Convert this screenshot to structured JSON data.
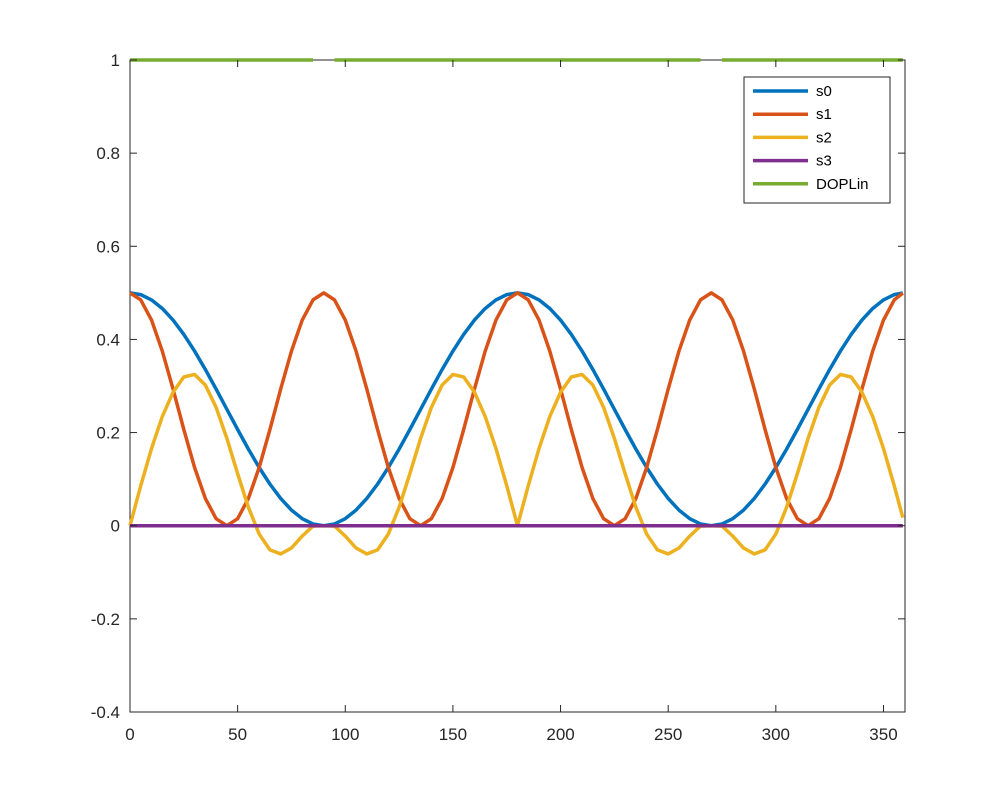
{
  "chart_data": {
    "type": "line",
    "title": "",
    "xlabel": "",
    "ylabel": "",
    "xlim": [
      0,
      360
    ],
    "ylim": [
      -0.4,
      1
    ],
    "x_ticks": [
      0,
      50,
      100,
      150,
      200,
      250,
      300,
      350
    ],
    "x_tick_labels": [
      "0",
      "50",
      "100",
      "150",
      "200",
      "250",
      "300",
      "350"
    ],
    "y_ticks": [
      -0.4,
      -0.2,
      0,
      0.2,
      0.4,
      0.6,
      0.8,
      1
    ],
    "y_tick_labels": [
      "-0.4",
      "-0.2",
      "0",
      "0.2",
      "0.4",
      "0.6",
      "0.8",
      "1"
    ],
    "grid": false,
    "legend_position": "top-right",
    "x": [
      0,
      5,
      10,
      15,
      20,
      25,
      30,
      35,
      40,
      45,
      50,
      55,
      60,
      65,
      70,
      75,
      80,
      85,
      90,
      95,
      100,
      105,
      110,
      115,
      120,
      125,
      130,
      135,
      140,
      145,
      150,
      155,
      160,
      165,
      170,
      175,
      180,
      185,
      190,
      195,
      200,
      205,
      210,
      215,
      220,
      225,
      230,
      235,
      240,
      245,
      250,
      255,
      260,
      265,
      270,
      275,
      280,
      285,
      290,
      295,
      300,
      305,
      310,
      315,
      320,
      325,
      330,
      335,
      340,
      345,
      350,
      355,
      359
    ],
    "series": [
      {
        "name": "s0",
        "color": "#0072BD",
        "values": [
          0.5,
          0.4962,
          0.4849,
          0.4665,
          0.4415,
          0.4107,
          0.375,
          0.3355,
          0.2934,
          0.25,
          0.2066,
          0.1645,
          0.125,
          0.0893,
          0.0585,
          0.0335,
          0.0151,
          0.0038,
          0,
          0.0038,
          0.0151,
          0.0335,
          0.0585,
          0.0893,
          0.125,
          0.1645,
          0.2066,
          0.25,
          0.2934,
          0.3355,
          0.375,
          0.4107,
          0.4415,
          0.4665,
          0.4849,
          0.4962,
          0.5,
          0.4962,
          0.4849,
          0.4665,
          0.4415,
          0.4107,
          0.375,
          0.3355,
          0.2934,
          0.25,
          0.2066,
          0.1645,
          0.125,
          0.0893,
          0.0585,
          0.0335,
          0.0151,
          0.0038,
          0,
          0.0038,
          0.0151,
          0.0335,
          0.0585,
          0.0893,
          0.125,
          0.1645,
          0.2066,
          0.25,
          0.2934,
          0.3355,
          0.375,
          0.4107,
          0.4415,
          0.4665,
          0.4849,
          0.4962,
          0.4998
        ]
      },
      {
        "name": "s1",
        "color": "#D95319",
        "values": [
          0.5,
          0.4849,
          0.4415,
          0.375,
          0.2934,
          0.2066,
          0.125,
          0.0585,
          0.0151,
          0,
          0.0151,
          0.0585,
          0.125,
          0.2066,
          0.2934,
          0.375,
          0.4415,
          0.4849,
          0.5,
          0.4849,
          0.4415,
          0.375,
          0.2934,
          0.2066,
          0.125,
          0.0585,
          0.0151,
          0,
          0.0151,
          0.0585,
          0.125,
          0.2066,
          0.2934,
          0.375,
          0.4415,
          0.4849,
          0.5,
          0.4849,
          0.4415,
          0.375,
          0.2934,
          0.2066,
          0.125,
          0.0585,
          0.0151,
          0,
          0.0151,
          0.0585,
          0.125,
          0.2066,
          0.2934,
          0.375,
          0.4415,
          0.4849,
          0.5,
          0.4849,
          0.4415,
          0.375,
          0.2934,
          0.2066,
          0.125,
          0.0585,
          0.0151,
          0,
          0.0151,
          0.0585,
          0.125,
          0.2066,
          0.2934,
          0.375,
          0.4415,
          0.4849,
          0.4994
        ]
      },
      {
        "name": "s2",
        "color": "#EDB120",
        "values": [
          0,
          0.0859,
          0.1658,
          0.2343,
          0.2868,
          0.3193,
          0.3248,
          0.3021,
          0.2542,
          0.1875,
          0.1117,
          0.0395,
          -0.0179,
          -0.0519,
          -0.0606,
          -0.0479,
          -0.0223,
          -0.0008,
          0,
          -0.0008,
          -0.0223,
          -0.0479,
          -0.0606,
          -0.0519,
          -0.0179,
          0.0395,
          0.1117,
          0.1875,
          0.2542,
          0.3021,
          0.3248,
          0.3193,
          0.2868,
          0.2343,
          0.1658,
          0.0859,
          0,
          0.0859,
          0.1658,
          0.2343,
          0.2868,
          0.3193,
          0.3248,
          0.3021,
          0.2542,
          0.1875,
          0.1117,
          0.0395,
          -0.0179,
          -0.0519,
          -0.0606,
          -0.0479,
          -0.0223,
          -0.0008,
          0,
          -0.0008,
          -0.0223,
          -0.0479,
          -0.0606,
          -0.0519,
          -0.0179,
          0.0395,
          0.1117,
          0.1875,
          0.2542,
          0.3021,
          0.3248,
          0.3193,
          0.2868,
          0.2343,
          0.1658,
          0.0859,
          0.0174
        ]
      },
      {
        "name": "s3",
        "color": "#7E2F8E",
        "values": [
          0,
          0,
          0,
          0,
          0,
          0,
          0,
          0,
          0,
          0,
          0,
          0,
          0,
          0,
          0,
          0,
          0,
          0,
          0,
          0,
          0,
          0,
          0,
          0,
          0,
          0,
          0,
          0,
          0,
          0,
          0,
          0,
          0,
          0,
          0,
          0,
          0,
          0,
          0,
          0,
          0,
          0,
          0,
          0,
          0,
          0,
          0,
          0,
          0,
          0,
          0,
          0,
          0,
          0,
          0,
          0,
          0,
          0,
          0,
          0,
          0,
          0,
          0,
          0,
          0,
          0,
          0,
          0,
          0,
          0,
          0,
          0,
          0
        ]
      },
      {
        "name": "DOPLin",
        "color": "#77AC30",
        "values": [
          1,
          1,
          1,
          1,
          1,
          1,
          1,
          1,
          1,
          1,
          1,
          1,
          1,
          1,
          1,
          1,
          1,
          1,
          null,
          1,
          1,
          1,
          1,
          1,
          1,
          1,
          1,
          1,
          1,
          1,
          1,
          1,
          1,
          1,
          1,
          1,
          1,
          1,
          1,
          1,
          1,
          1,
          1,
          1,
          1,
          1,
          1,
          1,
          1,
          1,
          1,
          1,
          1,
          1,
          null,
          1,
          1,
          1,
          1,
          1,
          1,
          1,
          1,
          1,
          1,
          1,
          1,
          1,
          1,
          1,
          1,
          1,
          1
        ]
      }
    ]
  }
}
